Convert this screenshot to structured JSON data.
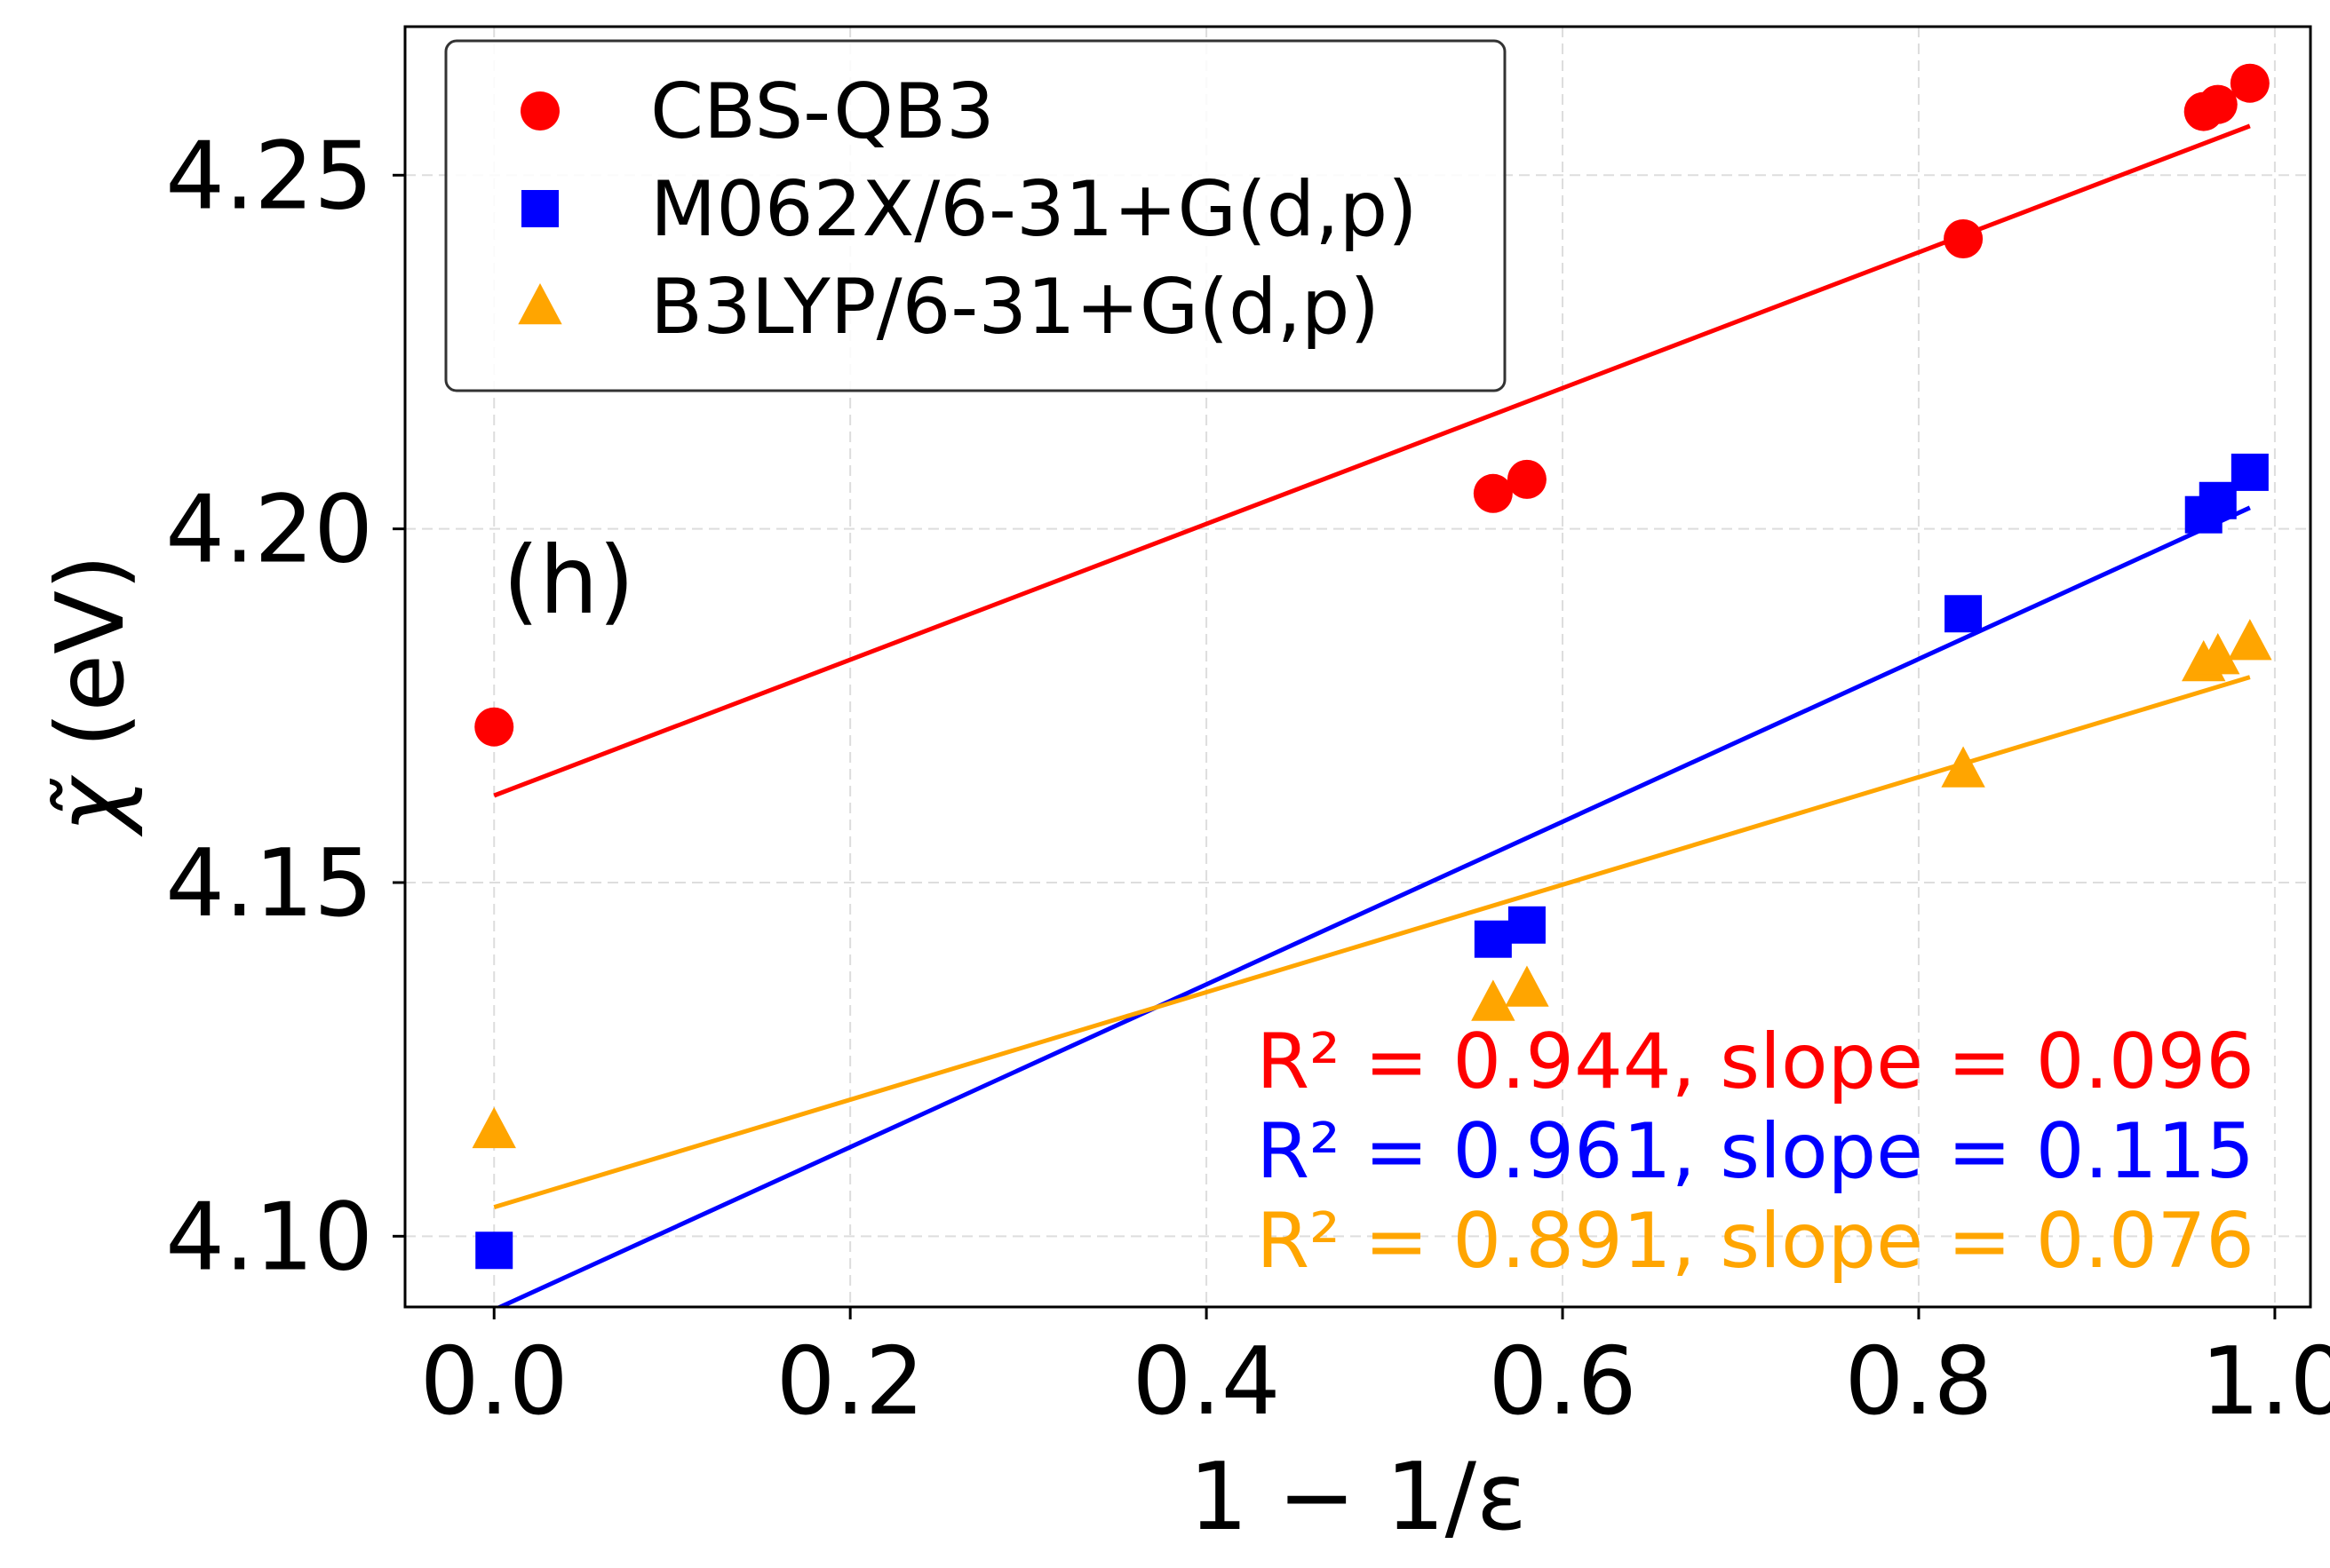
{
  "chart_data": {
    "type": "scatter",
    "xlabel": "1 − 1/ε",
    "ylabel_symbol": "χ̃",
    "ylabel_unit": "(eV)",
    "xlim": [
      -0.05,
      1.02
    ],
    "ylim": [
      4.09,
      4.271
    ],
    "x_ticks": [
      0.0,
      0.2,
      0.4,
      0.6,
      0.8,
      1.0
    ],
    "x_tick_labels": [
      "0.0",
      "0.2",
      "0.4",
      "0.6",
      "0.8",
      "1.0"
    ],
    "y_ticks": [
      4.1,
      4.15,
      4.2,
      4.25
    ],
    "y_tick_labels": [
      "4.10",
      "4.15",
      "4.20",
      "4.25"
    ],
    "grid": true,
    "legend_position": "top-left",
    "panel_label": "(h)",
    "series": [
      {
        "name": "CBS-QB3",
        "color": "#ff0000",
        "marker": "circle",
        "x": [
          0.0,
          0.561,
          0.58,
          0.825,
          0.96,
          0.968,
          0.986
        ],
        "y": [
          4.172,
          4.205,
          4.207,
          4.241,
          4.259,
          4.26,
          4.263
        ],
        "fit": {
          "intercept": 4.1623,
          "slope": 0.096
        },
        "annotation": "R² = 0.944, slope = 0.096"
      },
      {
        "name": "M062X/6-31+G(d,p)",
        "color": "#0000ff",
        "marker": "square",
        "x": [
          0.0,
          0.561,
          0.58,
          0.825,
          0.96,
          0.968,
          0.986
        ],
        "y": [
          4.098,
          4.142,
          4.144,
          4.188,
          4.202,
          4.204,
          4.208
        ],
        "fit": {
          "intercept": 4.0896,
          "slope": 0.115
        },
        "annotation": "R² = 0.961, slope = 0.115"
      },
      {
        "name": "B3LYP/6-31+G(d,p)",
        "color": "#ffa500",
        "marker": "triangle",
        "x": [
          0.0,
          0.561,
          0.58,
          0.825,
          0.96,
          0.968,
          0.986
        ],
        "y": [
          4.115,
          4.133,
          4.135,
          4.166,
          4.181,
          4.182,
          4.184
        ],
        "fit": {
          "intercept": 4.1041,
          "slope": 0.076
        },
        "annotation": "R² = 0.891, slope = 0.076"
      }
    ]
  }
}
